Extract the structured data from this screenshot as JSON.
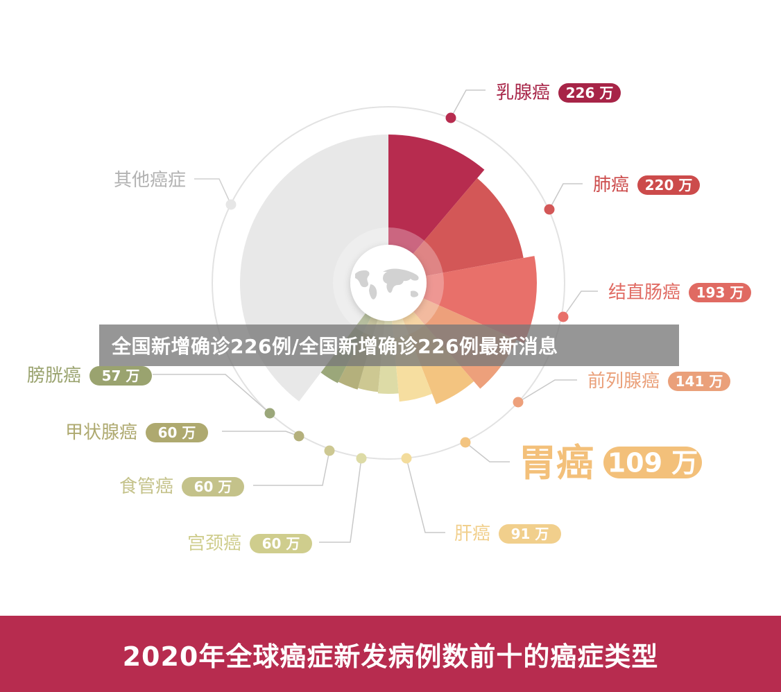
{
  "overlay": {
    "banner_text": "全国新增确诊226例/全国新增确诊226例最新消息"
  },
  "footer": {
    "title": "2020年全球癌症新发病例数前十的癌症类型"
  },
  "chart_data": {
    "type": "pie",
    "title": "2020年全球癌症新发病例数前十的癌症类型",
    "unit": "万",
    "slices": [
      {
        "label": "乳腺癌",
        "value": 226,
        "value_label": "226 万",
        "color": "#b72c4f",
        "label_color": "#a72447"
      },
      {
        "label": "肺癌",
        "value": 220,
        "value_label": "220 万",
        "color": "#d35757",
        "label_color": "#cc4b4b"
      },
      {
        "label": "结直肠癌",
        "value": 193,
        "value_label": "193 万",
        "color": "#e8706a",
        "label_color": "#e06a62"
      },
      {
        "label": "前列腺癌",
        "value": 141,
        "value_label": "141 万",
        "color": "#eda07b",
        "label_color": "#eaa07a"
      },
      {
        "label": "胃癌",
        "value": 109,
        "value_label": "109 万",
        "color": "#f3c480",
        "label_color": "#f3c07a"
      },
      {
        "label": "肝癌",
        "value": 91,
        "value_label": "91 万",
        "color": "#f6dea0",
        "label_color": "#f1cf8c"
      },
      {
        "label": "宫颈癌",
        "value": 60,
        "value_label": "60 万",
        "color": "#dddba6",
        "label_color": "#cfcd8d"
      },
      {
        "label": "食管癌",
        "value": 60,
        "value_label": "60 万",
        "color": "#cdc892",
        "label_color": "#c4c28a"
      },
      {
        "label": "甲状腺癌",
        "value": 60,
        "value_label": "60 万",
        "color": "#b4b07c",
        "label_color": "#aea96f"
      },
      {
        "label": "膀胱癌",
        "value": 57,
        "value_label": "57 万",
        "color": "#9ba77a",
        "label_color": "#9aa36f"
      },
      {
        "label": "其他癌症",
        "value": "",
        "value_label": "",
        "color": "#e8e8e8",
        "label_color": "#b2b2b2"
      }
    ],
    "legend": "none",
    "grid": false
  }
}
